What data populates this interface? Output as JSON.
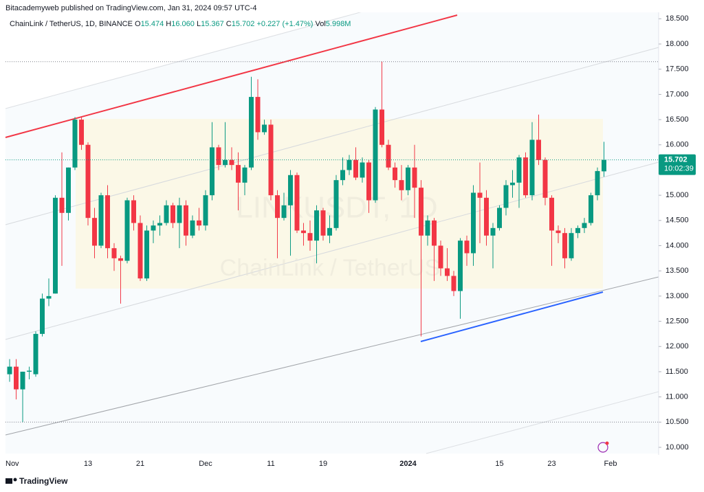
{
  "header": {
    "published": "Bitacademyweb published on TradingView.com, Jan 31, 2024 09:57 UTC-4"
  },
  "legend": {
    "symbol": "ChainLink / TetherUS, 1D, BINANCE",
    "items": [
      {
        "label": "O",
        "value": "15.474"
      },
      {
        "label": "H",
        "value": "16.060"
      },
      {
        "label": "L",
        "value": "15.367"
      },
      {
        "label": "C",
        "value": "15.702"
      }
    ],
    "change": "+0.227 (+1.47%)",
    "vol_label": "Vol",
    "vol_value": "5.998M"
  },
  "watermark": {
    "ticker": "LINKUSDT, 1D",
    "name": "ChainLink / TetherUS"
  },
  "footer": {
    "brand": "TradingView"
  },
  "chart_data": {
    "type": "candlestick",
    "up_color": "#089981",
    "down_color": "#f23645",
    "categories": [
      "Nov",
      null,
      null,
      null,
      null,
      null,
      null,
      null,
      null,
      null,
      null,
      null,
      "13",
      null,
      null,
      null,
      null,
      null,
      null,
      null,
      "21",
      null,
      null,
      null,
      null,
      null,
      null,
      null,
      null,
      null,
      "Dec",
      null,
      null,
      null,
      null,
      null,
      null,
      null,
      null,
      null,
      "11",
      null,
      null,
      null,
      null,
      null,
      null,
      null,
      "19",
      null,
      null,
      null,
      null,
      null,
      null,
      null,
      null,
      null,
      null,
      null,
      null,
      "2024",
      null,
      null,
      null,
      null,
      null,
      null,
      null,
      null,
      null,
      null,
      null,
      null,
      null,
      "15",
      null,
      null,
      null,
      null,
      null,
      null,
      null,
      "23",
      null,
      null,
      null,
      null,
      null,
      null,
      null,
      null,
      "Feb"
    ],
    "open": [
      11.45,
      11.6,
      11.15,
      11.5,
      11.45,
      12.25,
      12.95,
      13.05,
      14.95,
      14.65,
      15.55,
      16.5,
      16.0,
      14.55,
      14.0,
      15.0,
      13.95,
      13.75,
      13.7,
      14.9,
      14.45,
      13.35,
      14.3,
      14.4,
      14.45,
      14.8,
      14.45,
      14.8,
      14.2,
      14.5,
      14.4,
      15.0,
      15.95,
      15.6,
      15.7,
      15.6,
      15.25,
      15.55,
      16.95,
      16.25,
      16.4,
      15.0,
      14.55,
      14.8,
      15.4,
      14.3,
      14.25,
      14.1,
      14.7,
      14.2,
      14.35,
      15.3,
      15.5,
      15.7,
      15.35,
      15.65,
      14.9,
      16.7,
      16.0,
      15.55,
      15.3,
      15.1,
      15.55,
      15.15,
      14.2,
      14.5,
      14.0,
      13.55,
      13.4,
      13.1,
      14.1,
      13.85,
      15.05,
      14.95,
      14.2,
      14.35,
      14.75,
      15.2,
      15.25,
      15.75,
      15.0,
      16.1,
      15.7,
      14.95,
      14.3,
      14.25,
      13.75,
      14.25,
      14.35,
      14.45,
      15.0,
      15.474,
      null
    ],
    "high": [
      11.75,
      11.75,
      11.5,
      11.6,
      12.3,
      13.05,
      13.35,
      15.0,
      15.85,
      15.55,
      16.55,
      16.55,
      16.05,
      14.75,
      15.05,
      15.2,
      14.05,
      13.8,
      14.95,
      15.0,
      14.6,
      14.4,
      14.5,
      14.6,
      14.9,
      14.85,
      14.95,
      14.9,
      14.6,
      14.75,
      15.1,
      16.45,
      16.0,
      16.45,
      15.95,
      15.85,
      15.6,
      17.35,
      17.3,
      16.5,
      16.5,
      15.1,
      15.05,
      15.5,
      15.45,
      14.45,
      14.5,
      14.8,
      14.75,
      14.6,
      15.4,
      15.75,
      15.8,
      15.95,
      15.75,
      15.7,
      16.75,
      17.65,
      16.1,
      15.65,
      15.6,
      15.6,
      16.0,
      15.3,
      14.6,
      14.55,
      14.1,
      13.95,
      13.5,
      14.15,
      14.2,
      15.2,
      15.65,
      15.1,
      14.45,
      14.8,
      15.3,
      15.5,
      15.8,
      15.85,
      16.45,
      16.6,
      15.75,
      15.0,
      14.4,
      14.35,
      14.35,
      14.4,
      14.55,
      15.05,
      15.55,
      16.06,
      null
    ],
    "low": [
      11.3,
      10.95,
      10.5,
      11.35,
      11.4,
      12.2,
      12.8,
      13.05,
      13.6,
      14.5,
      15.5,
      15.9,
      14.4,
      13.75,
      13.95,
      13.75,
      13.5,
      12.85,
      13.65,
      14.3,
      13.3,
      13.3,
      14.05,
      14.2,
      14.4,
      14.35,
      13.95,
      14.0,
      14.15,
      14.3,
      14.3,
      14.9,
      15.5,
      15.55,
      15.5,
      14.7,
      15.0,
      15.5,
      16.1,
      16.2,
      14.9,
      13.75,
      14.5,
      13.8,
      14.25,
      14.0,
      13.9,
      13.65,
      14.1,
      14.05,
      14.3,
      15.2,
      15.4,
      15.3,
      15.25,
      14.65,
      14.85,
      15.95,
      15.5,
      15.15,
      14.9,
      15.0,
      14.55,
      12.2,
      14.0,
      13.3,
      13.4,
      13.3,
      13.0,
      12.55,
      13.6,
      13.6,
      14.05,
      14.0,
      13.55,
      14.3,
      14.6,
      14.95,
      14.75,
      14.95,
      14.9,
      15.6,
      14.8,
      13.6,
      14.05,
      13.55,
      13.7,
      14.15,
      14.25,
      14.4,
      14.9,
      15.367,
      null
    ],
    "close": [
      11.6,
      11.15,
      11.5,
      11.52,
      12.25,
      12.95,
      13.0,
      14.95,
      14.65,
      15.55,
      16.5,
      16.0,
      14.55,
      14.0,
      15.0,
      13.95,
      13.75,
      13.7,
      14.9,
      14.45,
      13.35,
      14.3,
      14.4,
      14.45,
      14.8,
      14.45,
      14.8,
      14.2,
      14.5,
      14.4,
      15.0,
      15.95,
      15.6,
      15.7,
      15.6,
      15.25,
      15.55,
      16.95,
      16.25,
      16.4,
      15.0,
      14.55,
      14.8,
      15.4,
      14.3,
      14.25,
      14.1,
      14.7,
      14.2,
      14.35,
      15.3,
      15.5,
      15.7,
      15.35,
      15.65,
      14.9,
      16.7,
      16.0,
      15.55,
      15.3,
      15.1,
      15.55,
      15.15,
      14.2,
      14.5,
      14.0,
      13.55,
      13.4,
      13.1,
      14.1,
      13.85,
      15.05,
      14.95,
      14.2,
      14.35,
      14.75,
      15.2,
      15.25,
      15.75,
      15.0,
      16.1,
      15.7,
      14.95,
      14.3,
      14.25,
      13.75,
      14.25,
      14.35,
      14.45,
      15.0,
      15.48,
      15.702,
      null
    ],
    "ylim": [
      9.85,
      18.6
    ],
    "yticks": [
      {
        "value": 10,
        "label": "10.000"
      },
      {
        "value": 10.5,
        "label": "10.500"
      },
      {
        "value": 11,
        "label": "11.000"
      },
      {
        "value": 11.5,
        "label": "11.500"
      },
      {
        "value": 12,
        "label": "12.000"
      },
      {
        "value": 12.5,
        "label": "12.500"
      },
      {
        "value": 13,
        "label": "13.000"
      },
      {
        "value": 13.5,
        "label": "13.500"
      },
      {
        "value": 14,
        "label": "14.000"
      },
      {
        "value": 14.5,
        "label": "14.500"
      },
      {
        "value": 15,
        "label": "15.000"
      },
      {
        "value": 15.5,
        "label": "15.500"
      },
      {
        "value": 16,
        "label": "16.000"
      },
      {
        "value": 16.5,
        "label": "16.500"
      },
      {
        "value": 17,
        "label": "17.000"
      },
      {
        "value": 17.5,
        "label": "17.500"
      },
      {
        "value": 18,
        "label": "18.000"
      },
      {
        "value": 18.5,
        "label": "18.500"
      }
    ],
    "hlines": [
      17.65,
      10.5
    ],
    "last_price": 15.702,
    "countdown": "10:02:39"
  }
}
